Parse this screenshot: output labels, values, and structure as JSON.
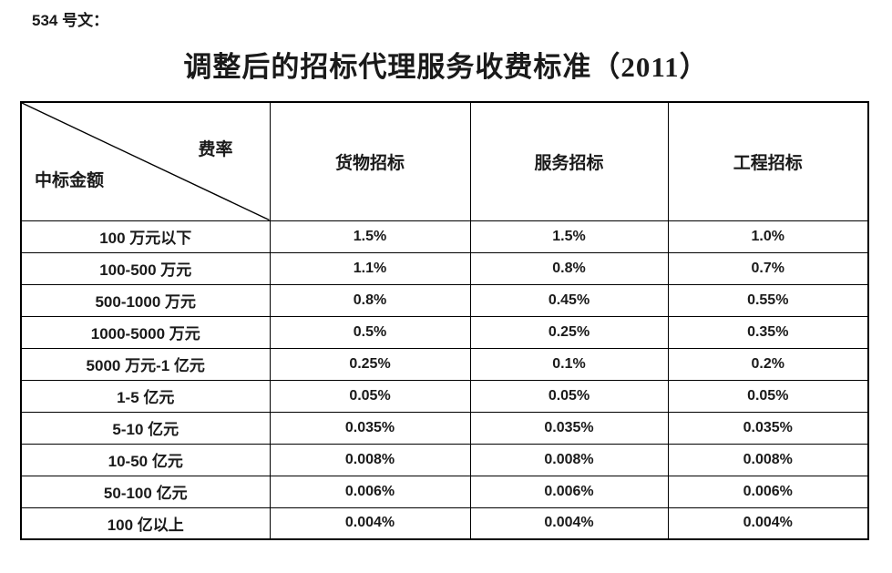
{
  "page": {
    "doc_label": "534 号文：",
    "title": "调整后的招标代理服务收费标准（2011）"
  },
  "table": {
    "corner": {
      "top_right": "费率",
      "bottom_left": "中标金额"
    },
    "columns": [
      "货物招标",
      "服务招标",
      "工程招标"
    ],
    "rows": [
      {
        "label": "100 万元以下",
        "values": [
          "1.5%",
          "1.5%",
          "1.0%"
        ]
      },
      {
        "label": "100-500 万元",
        "values": [
          "1.1%",
          "0.8%",
          "0.7%"
        ]
      },
      {
        "label": "500-1000 万元",
        "values": [
          "0.8%",
          "0.45%",
          "0.55%"
        ]
      },
      {
        "label": "1000-5000 万元",
        "values": [
          "0.5%",
          "0.25%",
          "0.35%"
        ]
      },
      {
        "label": "5000 万元-1 亿元",
        "values": [
          "0.25%",
          "0.1%",
          "0.2%"
        ]
      },
      {
        "label": "1-5 亿元",
        "values": [
          "0.05%",
          "0.05%",
          "0.05%"
        ]
      },
      {
        "label": "5-10 亿元",
        "values": [
          "0.035%",
          "0.035%",
          "0.035%"
        ]
      },
      {
        "label": "10-50 亿元",
        "values": [
          "0.008%",
          "0.008%",
          "0.008%"
        ]
      },
      {
        "label": "50-100 亿元",
        "values": [
          "0.006%",
          "0.006%",
          "0.006%"
        ]
      },
      {
        "label": "100 亿以上",
        "values": [
          "0.004%",
          "0.004%",
          "0.004%"
        ]
      }
    ]
  },
  "colors": {
    "text": "#1a1a1a",
    "border": "#000000",
    "background": "#ffffff"
  }
}
